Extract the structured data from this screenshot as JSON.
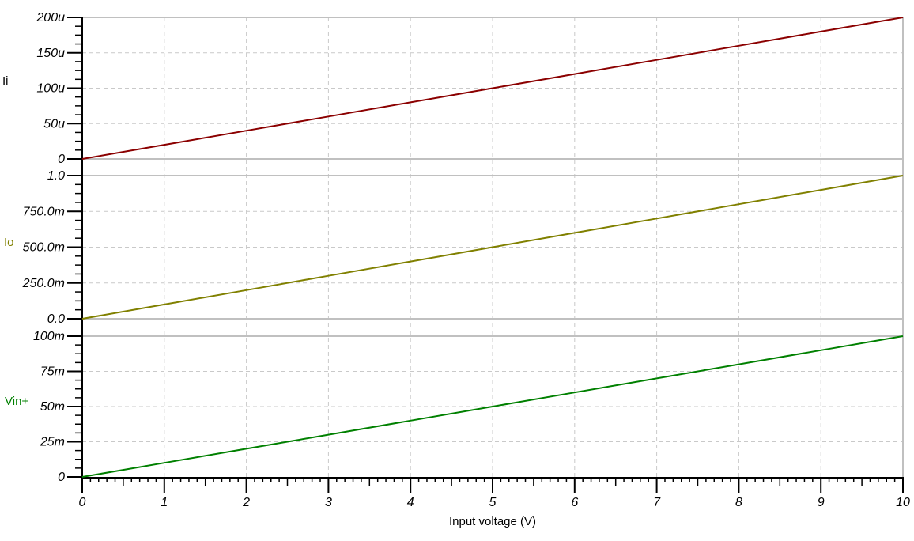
{
  "chart_data": {
    "type": "line",
    "xlabel": "Input voltage (V)",
    "xlim": [
      0,
      10
    ],
    "x": [
      0,
      1,
      2,
      3,
      4,
      5,
      6,
      7,
      8,
      9,
      10
    ],
    "x_tick_labels": [
      "0",
      "1",
      "2",
      "3",
      "4",
      "5",
      "6",
      "7",
      "8",
      "9",
      "10"
    ],
    "x_minor_per_major": 10,
    "grid": true,
    "legend_position": "left-of-each-panel",
    "colors": {
      "grid": "#c9c9c9",
      "border": "#c0c0c0",
      "axis": "#000000",
      "tick_label": "#000000"
    },
    "panels": [
      {
        "name": "Ii",
        "label_color": "#000000",
        "color": "#8b0000",
        "y_unit": "u",
        "ylim": [
          0,
          200
        ],
        "y_tick_values": [
          0,
          50,
          100,
          150,
          200
        ],
        "y_tick_labels": [
          "0",
          "50u",
          "100u",
          "150u",
          "200u"
        ],
        "y_minor_per_major": 4,
        "values": [
          0,
          20,
          40,
          60,
          80,
          100,
          120,
          140,
          160,
          180,
          200
        ]
      },
      {
        "name": "Io",
        "label_color": "#808000",
        "color": "#808000",
        "y_unit": "",
        "ylim": [
          0,
          1.0
        ],
        "y_tick_values": [
          0,
          0.25,
          0.5,
          0.75,
          1.0
        ],
        "y_tick_labels": [
          "0.0",
          "250.0m",
          "500.0m",
          "750.0m",
          "1.0"
        ],
        "y_minor_per_major": 4,
        "values": [
          0,
          0.1,
          0.2,
          0.3,
          0.4,
          0.5,
          0.6,
          0.7,
          0.8,
          0.9,
          1.0
        ]
      },
      {
        "name": "Vin+",
        "label_color": "#008000",
        "color": "#008000",
        "y_unit": "m",
        "ylim": [
          0,
          100
        ],
        "y_tick_values": [
          0,
          25,
          50,
          75,
          100
        ],
        "y_tick_labels": [
          "0",
          "25m",
          "50m",
          "75m",
          "100m"
        ],
        "y_minor_per_major": 4,
        "values": [
          0,
          10,
          20,
          30,
          40,
          50,
          60,
          70,
          80,
          90,
          100
        ]
      }
    ]
  }
}
